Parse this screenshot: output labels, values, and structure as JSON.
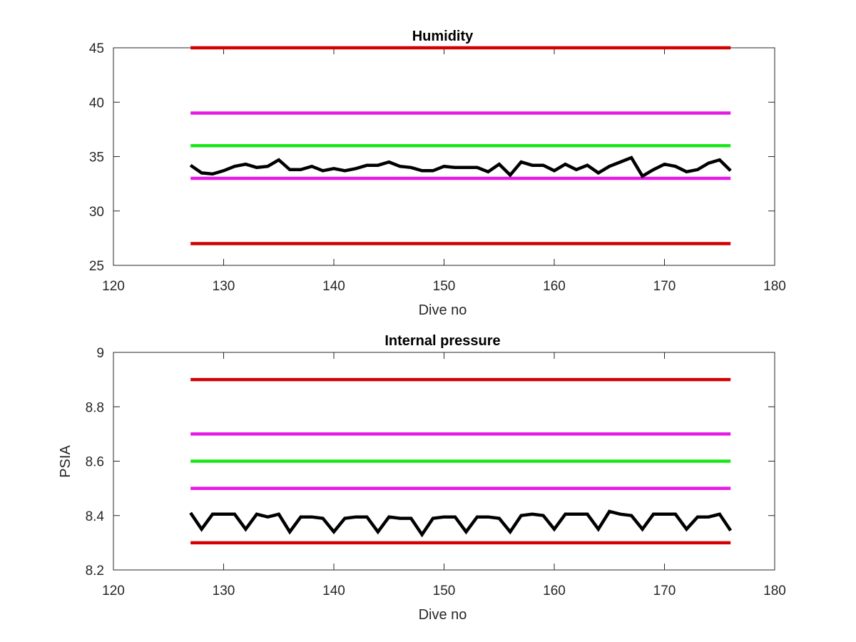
{
  "chart_data": [
    {
      "type": "line",
      "title": "Humidity",
      "xlabel": "Dive no",
      "ylabel": "",
      "xlim": [
        120,
        180
      ],
      "ylim": [
        25,
        45
      ],
      "xticks": [
        120,
        130,
        140,
        150,
        160,
        170,
        180
      ],
      "yticks": [
        25,
        30,
        35,
        40,
        45
      ],
      "grid": false,
      "legend": "none",
      "thresholds": [
        {
          "y": 45,
          "x": [
            127,
            176
          ],
          "color": "#d40000"
        },
        {
          "y": 39,
          "x": [
            127,
            176
          ],
          "color": "#e619e6"
        },
        {
          "y": 36,
          "x": [
            127,
            176
          ],
          "color": "#19e619"
        },
        {
          "y": 33,
          "x": [
            127,
            176
          ],
          "color": "#e619e6"
        },
        {
          "y": 27,
          "x": [
            127,
            176
          ],
          "color": "#d40000"
        }
      ],
      "series": [
        {
          "color": "#000000",
          "x": [
            127,
            128,
            129,
            130,
            131,
            132,
            133,
            134,
            135,
            136,
            137,
            138,
            139,
            140,
            141,
            142,
            143,
            144,
            145,
            146,
            147,
            148,
            149,
            150,
            151,
            152,
            153,
            154,
            155,
            156,
            157,
            158,
            159,
            160,
            161,
            162,
            163,
            164,
            165,
            166,
            167,
            168,
            169,
            170,
            171,
            172,
            173,
            174,
            175,
            176
          ],
          "y": [
            34.2,
            33.5,
            33.4,
            33.7,
            34.1,
            34.3,
            34.0,
            34.1,
            34.7,
            33.8,
            33.8,
            34.1,
            33.7,
            33.9,
            33.7,
            33.9,
            34.2,
            34.2,
            34.5,
            34.1,
            34.0,
            33.7,
            33.7,
            34.1,
            34.0,
            34.0,
            34.0,
            33.6,
            34.3,
            33.3,
            34.5,
            34.2,
            34.2,
            33.7,
            34.3,
            33.8,
            34.2,
            33.5,
            34.1,
            34.5,
            34.9,
            33.2,
            33.8,
            34.3,
            34.1,
            33.6,
            33.8,
            34.4,
            34.7,
            33.7
          ]
        }
      ]
    },
    {
      "type": "line",
      "title": "Internal pressure",
      "xlabel": "Dive no",
      "ylabel": "PSIA",
      "xlim": [
        120,
        180
      ],
      "ylim": [
        8.2,
        9
      ],
      "xticks": [
        120,
        130,
        140,
        150,
        160,
        170,
        180
      ],
      "yticks": [
        8.2,
        8.4,
        8.6,
        8.8,
        9
      ],
      "grid": false,
      "legend": "none",
      "thresholds": [
        {
          "y": 8.9,
          "x": [
            127,
            176
          ],
          "color": "#d40000"
        },
        {
          "y": 8.7,
          "x": [
            127,
            176
          ],
          "color": "#e619e6"
        },
        {
          "y": 8.6,
          "x": [
            127,
            176
          ],
          "color": "#19e619"
        },
        {
          "y": 8.5,
          "x": [
            127,
            176
          ],
          "color": "#e619e6"
        },
        {
          "y": 8.3,
          "x": [
            127,
            176
          ],
          "color": "#d40000"
        }
      ],
      "series": [
        {
          "color": "#000000",
          "x": [
            127,
            128,
            129,
            130,
            131,
            132,
            133,
            134,
            135,
            136,
            137,
            138,
            139,
            140,
            141,
            142,
            143,
            144,
            145,
            146,
            147,
            148,
            149,
            150,
            151,
            152,
            153,
            154,
            155,
            156,
            157,
            158,
            159,
            160,
            161,
            162,
            163,
            164,
            165,
            166,
            167,
            168,
            169,
            170,
            171,
            172,
            173,
            174,
            175,
            176
          ],
          "y": [
            8.41,
            8.35,
            8.405,
            8.405,
            8.405,
            8.35,
            8.405,
            8.395,
            8.405,
            8.34,
            8.395,
            8.395,
            8.39,
            8.34,
            8.39,
            8.395,
            8.395,
            8.34,
            8.395,
            8.39,
            8.39,
            8.33,
            8.39,
            8.395,
            8.395,
            8.34,
            8.395,
            8.395,
            8.39,
            8.34,
            8.4,
            8.405,
            8.4,
            8.35,
            8.405,
            8.405,
            8.405,
            8.35,
            8.415,
            8.405,
            8.4,
            8.35,
            8.405,
            8.405,
            8.405,
            8.35,
            8.395,
            8.395,
            8.405,
            8.345
          ]
        }
      ]
    }
  ]
}
